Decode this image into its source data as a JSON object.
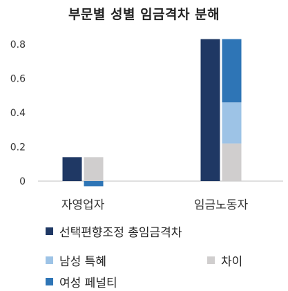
{
  "chart_data": {
    "type": "bar",
    "title": "부문별 성별 임금격차 분해",
    "categories": [
      "자영업자",
      "임금노동자"
    ],
    "y_ticks": [
      "0",
      "0.2",
      "0.4",
      "0.6",
      "0.8"
    ],
    "ylim": [
      -0.05,
      0.85
    ],
    "grid": false,
    "total_series": {
      "name": "선택편향조정 총임금격차",
      "color": "#1f3864",
      "values": [
        0.14,
        0.83
      ]
    },
    "stacked_series": [
      {
        "name": "차이",
        "color": "#d0cece",
        "values": [
          0.14,
          0.22
        ]
      },
      {
        "name": "남성 특혜",
        "color": "#9dc3e6",
        "values": [
          0.0,
          0.24
        ]
      },
      {
        "name": "여성 페널티",
        "color": "#2e75b6",
        "values": [
          -0.03,
          0.37
        ]
      }
    ],
    "legend": [
      {
        "name": "선택편향조정 총임금격차",
        "color": "#1f3864"
      },
      {
        "name": "남성 특혜",
        "color": "#9dc3e6"
      },
      {
        "name": "차이",
        "color": "#d0cece"
      },
      {
        "name": "여성 페널티",
        "color": "#2e75b6"
      }
    ],
    "legend_position": "bottom"
  }
}
